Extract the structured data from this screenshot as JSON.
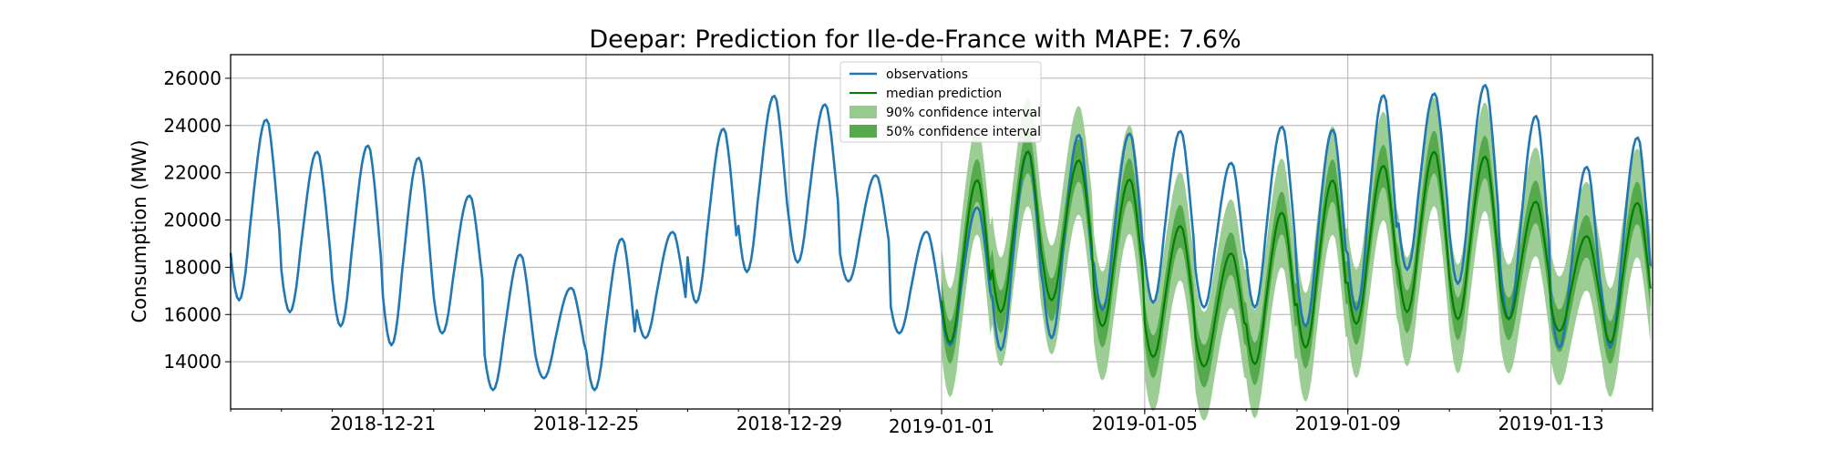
{
  "chart_data": {
    "type": "line",
    "title": "Deepar: Prediction for Ile-de-France with MAPE: 7.6%",
    "xlabel": "",
    "ylabel": "Consumption (MW)",
    "x_range": [
      "2018-12-18",
      "2019-01-15"
    ],
    "ylim": [
      12000,
      27000
    ],
    "yticks": [
      14000,
      16000,
      18000,
      20000,
      22000,
      24000,
      26000
    ],
    "xticks": [
      "2018-12-21",
      "2018-12-25",
      "2018-12-29",
      "2019-01-01",
      "2019-01-05",
      "2019-01-09",
      "2019-01-13"
    ],
    "grid": true,
    "legend_position": "top-center",
    "legend": [
      {
        "label": "observations",
        "kind": "line",
        "color": "#1f77b4"
      },
      {
        "label": "median prediction",
        "kind": "line",
        "color": "#008000"
      },
      {
        "label": "90% confidence interval",
        "kind": "band",
        "color": "#97ca8f"
      },
      {
        "label": "50% confidence interval",
        "kind": "band",
        "color": "#56a94d"
      }
    ],
    "series": [
      {
        "name": "observations",
        "color": "#1f77b4",
        "values_by_day": [
          {
            "date": "2018-12-18",
            "min": 16600,
            "max": 24600
          },
          {
            "date": "2018-12-19",
            "min": 16100,
            "max": 23200
          },
          {
            "date": "2018-12-20",
            "min": 15500,
            "max": 23500
          },
          {
            "date": "2018-12-21",
            "min": 14700,
            "max": 23000
          },
          {
            "date": "2018-12-22",
            "min": 15200,
            "max": 21300
          },
          {
            "date": "2018-12-23",
            "min": 12800,
            "max": 18800
          },
          {
            "date": "2018-12-24",
            "min": 13300,
            "max": 17300
          },
          {
            "date": "2018-12-25",
            "min": 12800,
            "max": 19500
          },
          {
            "date": "2018-12-26",
            "min": 15000,
            "max": 19700
          },
          {
            "date": "2018-12-27",
            "min": 16500,
            "max": 24200
          },
          {
            "date": "2018-12-28",
            "min": 17800,
            "max": 25600
          },
          {
            "date": "2018-12-29",
            "min": 18200,
            "max": 25200
          },
          {
            "date": "2018-12-30",
            "min": 17400,
            "max": 22100
          },
          {
            "date": "2018-12-31",
            "min": 15200,
            "max": 19700
          },
          {
            "date": "2019-01-01",
            "min": 14700,
            "max": 20800
          },
          {
            "date": "2019-01-02",
            "min": 14500,
            "max": 23300
          },
          {
            "date": "2019-01-03",
            "min": 15000,
            "max": 24000
          },
          {
            "date": "2019-01-04",
            "min": 16200,
            "max": 24000
          },
          {
            "date": "2019-01-05",
            "min": 16500,
            "max": 24100
          },
          {
            "date": "2019-01-06",
            "min": 16300,
            "max": 22700
          },
          {
            "date": "2019-01-07",
            "min": 16300,
            "max": 24300
          },
          {
            "date": "2019-01-08",
            "min": 15500,
            "max": 24200
          },
          {
            "date": "2019-01-09",
            "min": 16200,
            "max": 25700
          },
          {
            "date": "2019-01-10",
            "min": 17900,
            "max": 25700
          },
          {
            "date": "2019-01-11",
            "min": 17300,
            "max": 26100
          },
          {
            "date": "2019-01-12",
            "min": 15800,
            "max": 24800
          },
          {
            "date": "2019-01-13",
            "min": 14600,
            "max": 22600
          },
          {
            "date": "2019-01-14",
            "min": 14600,
            "max": 23900
          }
        ]
      },
      {
        "name": "median prediction",
        "color": "#008000",
        "values_by_day": [
          {
            "date": "2019-01-01",
            "min": 14800,
            "max": 22000
          },
          {
            "date": "2019-01-02",
            "min": 16100,
            "max": 23200
          },
          {
            "date": "2019-01-03",
            "min": 16600,
            "max": 22800
          },
          {
            "date": "2019-01-04",
            "min": 15500,
            "max": 22000
          },
          {
            "date": "2019-01-05",
            "min": 14200,
            "max": 20000
          },
          {
            "date": "2019-01-06",
            "min": 13800,
            "max": 18800
          },
          {
            "date": "2019-01-07",
            "min": 13900,
            "max": 20600
          },
          {
            "date": "2019-01-08",
            "min": 14600,
            "max": 22000
          },
          {
            "date": "2019-01-09",
            "min": 15600,
            "max": 22600
          },
          {
            "date": "2019-01-10",
            "min": 16100,
            "max": 23200
          },
          {
            "date": "2019-01-11",
            "min": 15800,
            "max": 23000
          },
          {
            "date": "2019-01-12",
            "min": 15800,
            "max": 21000
          },
          {
            "date": "2019-01-13",
            "min": 15300,
            "max": 19500
          },
          {
            "date": "2019-01-14",
            "min": 14800,
            "max": 21000
          }
        ]
      }
    ],
    "confidence_90_halfwidth": 2300,
    "confidence_50_halfwidth": 900
  }
}
